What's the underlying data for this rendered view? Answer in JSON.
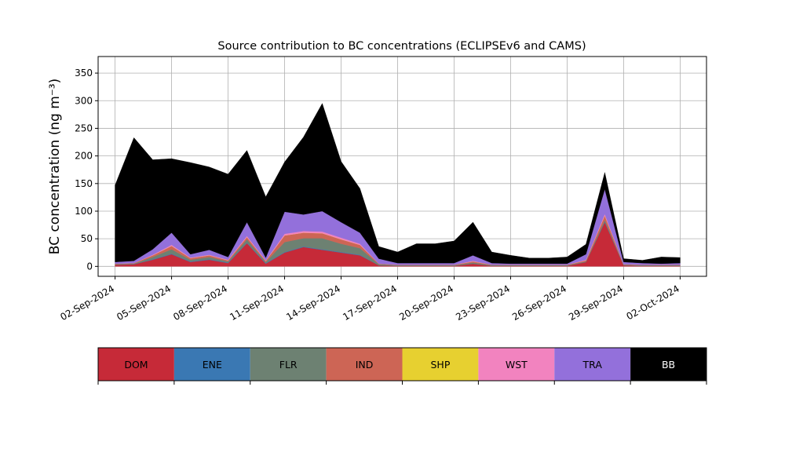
{
  "chart_data": {
    "type": "area",
    "title": "Source contribution to BC concentrations (ECLIPSEv6 and CAMS)",
    "ylabel": "BC concentration (ng m⁻³)",
    "xlabel": "",
    "ylim": [
      -18,
      380
    ],
    "yticks": [
      0,
      50,
      100,
      150,
      200,
      250,
      300,
      350
    ],
    "xticks": [
      "02-Sep-2024",
      "05-Sep-2024",
      "08-Sep-2024",
      "11-Sep-2024",
      "14-Sep-2024",
      "17-Sep-2024",
      "20-Sep-2024",
      "23-Sep-2024",
      "26-Sep-2024",
      "29-Sep-2024",
      "02-Oct-2024"
    ],
    "grid": true,
    "stacked": true,
    "x": [
      "01-Sep-2024",
      "02-Sep-2024",
      "03-Sep-2024",
      "04-Sep-2024",
      "05-Sep-2024",
      "06-Sep-2024",
      "07-Sep-2024",
      "08-Sep-2024",
      "09-Sep-2024",
      "10-Sep-2024",
      "11-Sep-2024",
      "12-Sep-2024",
      "13-Sep-2024",
      "14-Sep-2024",
      "15-Sep-2024",
      "16-Sep-2024",
      "17-Sep-2024",
      "18-Sep-2024",
      "19-Sep-2024",
      "20-Sep-2024",
      "21-Sep-2024",
      "22-Sep-2024",
      "23-Sep-2024",
      "24-Sep-2024",
      "25-Sep-2024",
      "26-Sep-2024",
      "27-Sep-2024",
      "28-Sep-2024",
      "29-Sep-2024",
      "30-Sep-2024",
      "01-Oct-2024"
    ],
    "series": [
      {
        "name": "DOM",
        "color": "#c62a38",
        "values": [
          3,
          4,
          12,
          22,
          8,
          12,
          6,
          42,
          5,
          25,
          35,
          30,
          25,
          20,
          2,
          1,
          1,
          1,
          1,
          5,
          1,
          1,
          1,
          1,
          1,
          8,
          80,
          2,
          1,
          1,
          1
        ]
      },
      {
        "name": "ENE",
        "color": "#3a78b3",
        "values": [
          0,
          0,
          1,
          1,
          1,
          1,
          1,
          1,
          1,
          1,
          1,
          1,
          1,
          1,
          0,
          0,
          0,
          0,
          0,
          0,
          0,
          0,
          0,
          0,
          0,
          0,
          1,
          0,
          0,
          0,
          0
        ]
      },
      {
        "name": "FLR",
        "color": "#6d8172",
        "values": [
          1,
          1,
          4,
          8,
          3,
          4,
          2,
          6,
          2,
          18,
          15,
          20,
          15,
          12,
          2,
          1,
          1,
          1,
          1,
          2,
          1,
          1,
          1,
          1,
          1,
          1,
          3,
          1,
          1,
          1,
          1
        ]
      },
      {
        "name": "IND",
        "color": "#cd6555",
        "values": [
          1,
          1,
          3,
          6,
          3,
          3,
          2,
          4,
          2,
          12,
          10,
          9,
          8,
          6,
          1,
          1,
          1,
          1,
          1,
          2,
          1,
          1,
          1,
          1,
          1,
          2,
          8,
          1,
          1,
          1,
          1
        ]
      },
      {
        "name": "SHP",
        "color": "#e7d030",
        "values": [
          0,
          0,
          0,
          0,
          0,
          0,
          0,
          0,
          0,
          0,
          0,
          0,
          0,
          0,
          0,
          0,
          0,
          0,
          0,
          0,
          0,
          0,
          0,
          0,
          0,
          0,
          0,
          0,
          0,
          0,
          0
        ]
      },
      {
        "name": "WST",
        "color": "#f283bf",
        "values": [
          0,
          0,
          1,
          2,
          1,
          1,
          1,
          2,
          1,
          3,
          3,
          3,
          3,
          2,
          0,
          0,
          0,
          0,
          0,
          1,
          0,
          0,
          0,
          0,
          0,
          1,
          3,
          0,
          0,
          0,
          0
        ]
      },
      {
        "name": "TRA",
        "color": "#9370db",
        "values": [
          3,
          4,
          10,
          22,
          6,
          9,
          5,
          25,
          5,
          40,
          30,
          37,
          28,
          20,
          9,
          3,
          3,
          3,
          3,
          10,
          3,
          2,
          2,
          2,
          2,
          10,
          45,
          4,
          3,
          2,
          3
        ]
      },
      {
        "name": "BB",
        "color": "#000000",
        "values": [
          139,
          223,
          162,
          134,
          166,
          150,
          150,
          130,
          110,
          90,
          140,
          195,
          110,
          80,
          22,
          20,
          35,
          35,
          40,
          60,
          20,
          15,
          10,
          10,
          12,
          18,
          30,
          6,
          5,
          12,
          10
        ]
      }
    ],
    "legend": {
      "placement": "below",
      "labels": [
        "DOM",
        "ENE",
        "FLR",
        "IND",
        "SHP",
        "WST",
        "TRA",
        "BB"
      ]
    }
  }
}
